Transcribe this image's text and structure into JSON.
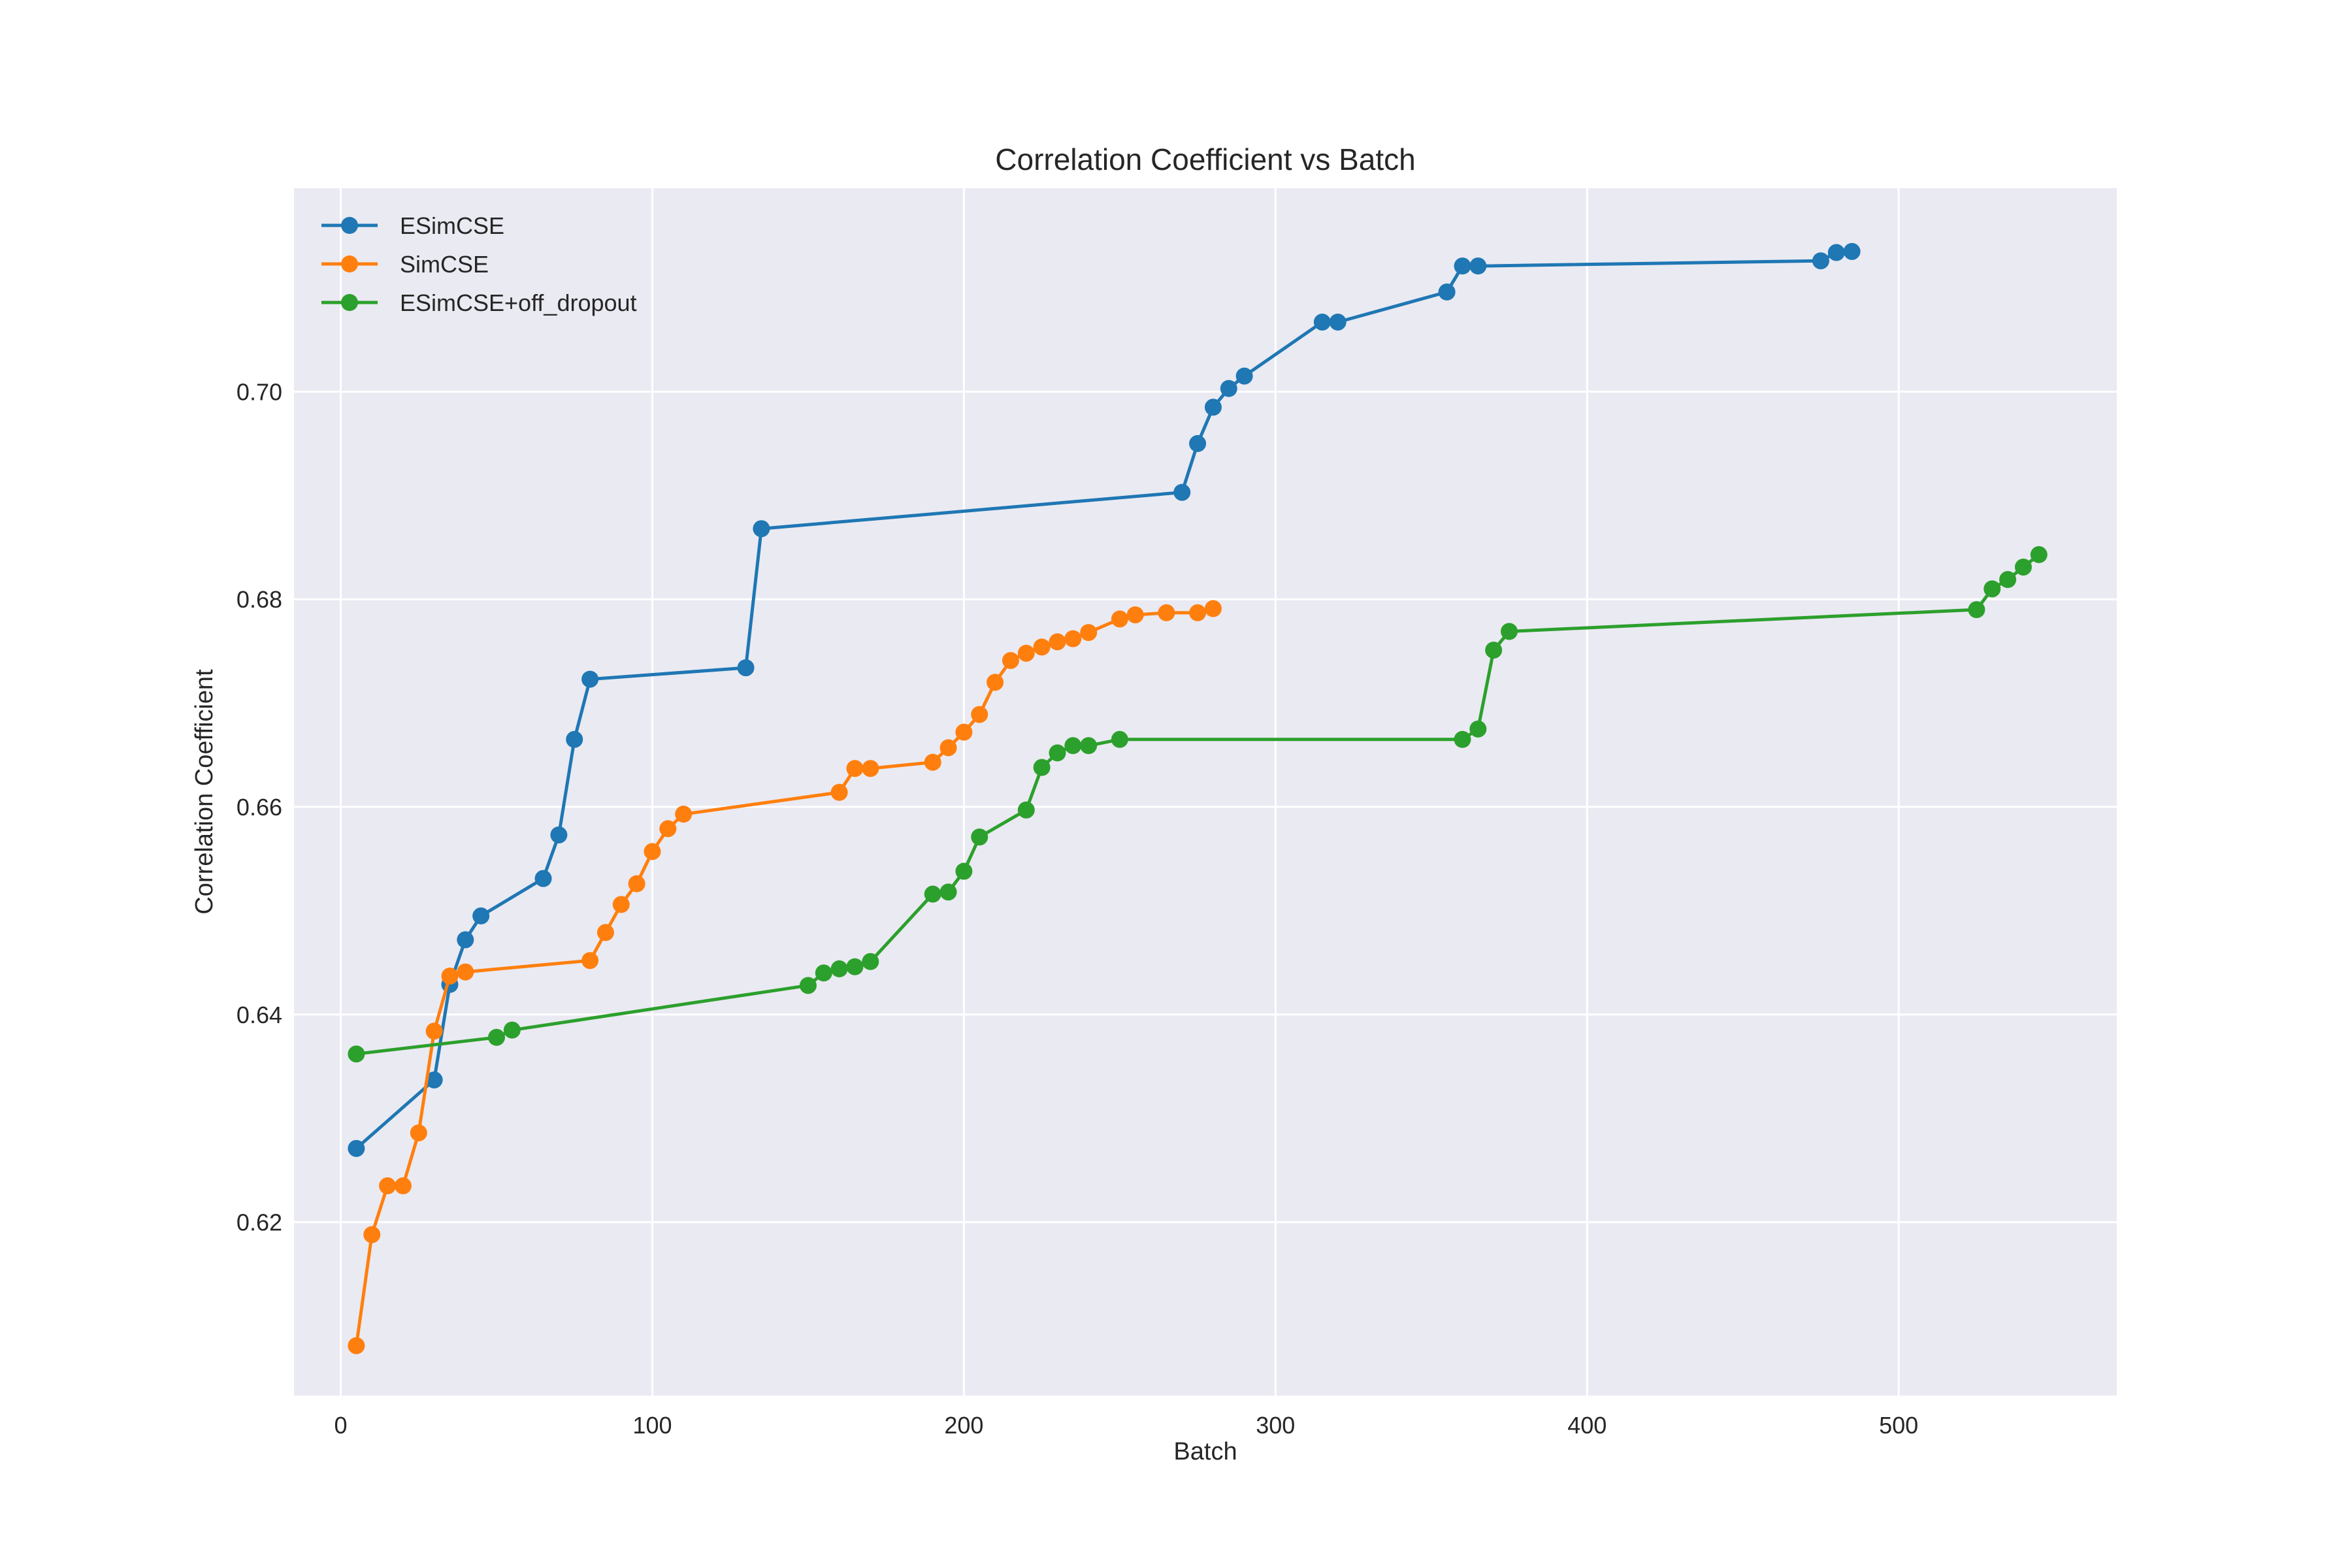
{
  "chart_data": {
    "type": "line",
    "title": "Correlation Coefficient vs Batch",
    "xlabel": "Batch",
    "ylabel": "Correlation Coefficient",
    "xlim": [
      -15,
      570
    ],
    "ylim": [
      0.6033,
      0.7196
    ],
    "x_ticks": [
      0,
      100,
      200,
      300,
      400,
      500
    ],
    "y_ticks": [
      0.62,
      0.64,
      0.66,
      0.68,
      0.7
    ],
    "x_tick_labels": [
      "0",
      "100",
      "200",
      "300",
      "400",
      "500"
    ],
    "y_tick_labels": [
      "0.62",
      "0.64",
      "0.66",
      "0.68",
      "0.70"
    ],
    "grid": true,
    "legend_position": "top-left",
    "series": [
      {
        "name": "ESimCSE",
        "color": "#1f77b4",
        "x": [
          5,
          30,
          35,
          40,
          45,
          65,
          70,
          75,
          80,
          130,
          135,
          270,
          275,
          280,
          285,
          290,
          315,
          320,
          355,
          360,
          365,
          475,
          480,
          485
        ],
        "y": [
          0.6271,
          0.6337,
          0.6429,
          0.6472,
          0.6495,
          0.6531,
          0.6573,
          0.6665,
          0.6723,
          0.6734,
          0.6868,
          0.6903,
          0.695,
          0.6985,
          0.7003,
          0.7015,
          0.7067,
          0.7067,
          0.7096,
          0.7121,
          0.7121,
          0.7126,
          0.7134,
          0.7135
        ]
      },
      {
        "name": "SimCSE",
        "color": "#ff7f0e",
        "x": [
          5,
          10,
          15,
          20,
          25,
          30,
          35,
          40,
          80,
          85,
          90,
          95,
          100,
          105,
          110,
          160,
          165,
          170,
          190,
          195,
          200,
          205,
          210,
          215,
          220,
          225,
          230,
          235,
          240,
          250,
          255,
          265,
          275,
          280
        ],
        "y": [
          0.6081,
          0.6188,
          0.6235,
          0.6235,
          0.6286,
          0.6384,
          0.6437,
          0.6441,
          0.6452,
          0.6479,
          0.6506,
          0.6526,
          0.6557,
          0.6579,
          0.6593,
          0.6614,
          0.6637,
          0.6637,
          0.6643,
          0.6657,
          0.6672,
          0.6689,
          0.672,
          0.6741,
          0.6748,
          0.6754,
          0.6759,
          0.6762,
          0.6768,
          0.6781,
          0.6785,
          0.6787,
          0.6787,
          0.6791
        ]
      },
      {
        "name": "ESimCSE+off_dropout",
        "color": "#2ca02c",
        "x": [
          5,
          50,
          55,
          150,
          155,
          160,
          165,
          170,
          190,
          195,
          200,
          205,
          220,
          225,
          230,
          235,
          240,
          250,
          360,
          365,
          370,
          375,
          525,
          530,
          535,
          540,
          545
        ],
        "y": [
          0.6362,
          0.6378,
          0.6385,
          0.6428,
          0.644,
          0.6444,
          0.6446,
          0.6451,
          0.6516,
          0.6518,
          0.6538,
          0.6571,
          0.6597,
          0.6638,
          0.6652,
          0.6659,
          0.6659,
          0.6665,
          0.6665,
          0.6675,
          0.6751,
          0.6769,
          0.679,
          0.681,
          0.6819,
          0.6831,
          0.6843
        ]
      }
    ]
  }
}
